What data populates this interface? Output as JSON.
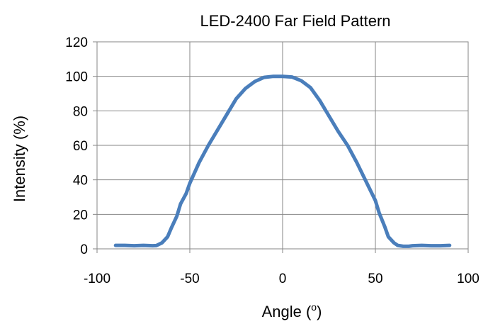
{
  "chart_data": {
    "type": "line",
    "title": "LED-2400 Far Field Pattern",
    "xlabel": "Angle (",
    "xlabel_sup": "o",
    "xlabel_end": ")",
    "ylabel": "Intensity (%)",
    "xlim": [
      -100,
      100
    ],
    "ylim": [
      0,
      120
    ],
    "xticks": [
      -100,
      -50,
      0,
      50,
      100
    ],
    "yticks": [
      0,
      20,
      40,
      60,
      80,
      100,
      120
    ],
    "grid": true,
    "legend": "none",
    "colors": {
      "series": "#4a7ebb",
      "grid": "#868686"
    },
    "series": [
      {
        "x": [
          -90,
          -85,
          -80,
          -75,
          -70,
          -68,
          -65,
          -62,
          -60,
          -57,
          -55,
          -52,
          -50,
          -45,
          -40,
          -35,
          -30,
          -25,
          -20,
          -15,
          -10,
          -5,
          0,
          5,
          10,
          15,
          20,
          25,
          30,
          35,
          40,
          45,
          50,
          52,
          55,
          57,
          60,
          62,
          65,
          68,
          70,
          75,
          80,
          85,
          90
        ],
        "y": [
          2,
          2,
          1.8,
          2,
          1.8,
          1.9,
          3.5,
          7,
          12,
          19,
          26,
          32,
          38,
          50,
          60,
          69,
          78,
          87,
          93,
          97,
          99.4,
          100,
          100,
          99.6,
          97.5,
          93.5,
          86,
          77,
          68,
          60,
          50,
          39,
          28,
          21,
          13,
          7,
          3.5,
          2,
          1.5,
          1.5,
          1.8,
          2,
          1.8,
          1.8,
          2
        ]
      }
    ]
  }
}
